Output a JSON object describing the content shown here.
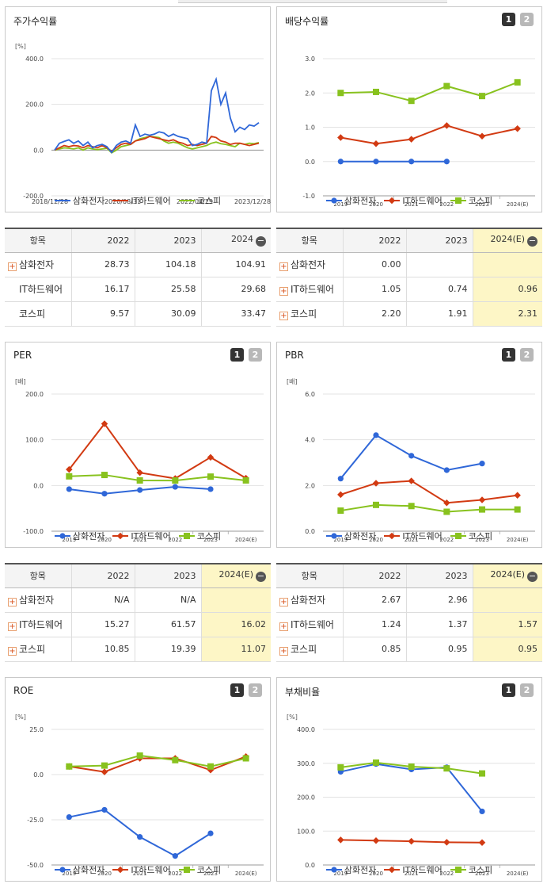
{
  "legend": [
    "삼화전자",
    "IT하드웨어",
    "코스피"
  ],
  "colors": [
    "#2f67d8",
    "#d23a12",
    "#88c21e"
  ],
  "buttons": [
    "1",
    "2"
  ],
  "charts": [
    {
      "id": "stock",
      "title": "주가수익률",
      "unit": "[%]",
      "xlabels": [
        "2018/12/28",
        "2020/08/31",
        "2022/04/29",
        "2023/12/28"
      ],
      "ylim": [
        -200,
        400
      ],
      "yticks": [
        "400.0",
        "200.0",
        "0.0",
        "-200.0"
      ],
      "series": [
        {
          "name": "삼화전자",
          "values": [
            0,
            30,
            38,
            45,
            30,
            40,
            20,
            35,
            10,
            20,
            25,
            15,
            -10,
            20,
            35,
            40,
            30,
            110,
            60,
            70,
            65,
            70,
            80,
            75,
            60,
            70,
            60,
            55,
            50,
            20,
            25,
            35,
            30,
            260,
            310,
            200,
            250,
            140,
            80,
            100,
            90,
            110,
            105,
            120
          ]
        },
        {
          "name": "IT하드웨어",
          "values": [
            0,
            10,
            20,
            15,
            20,
            18,
            10,
            20,
            15,
            10,
            20,
            10,
            -5,
            10,
            25,
            30,
            25,
            40,
            45,
            50,
            60,
            55,
            50,
            45,
            40,
            45,
            35,
            30,
            20,
            25,
            20,
            25,
            30,
            60,
            55,
            40,
            35,
            25,
            30,
            30,
            25,
            20,
            25,
            30
          ]
        },
        {
          "name": "코스피",
          "values": [
            0,
            5,
            10,
            8,
            5,
            10,
            0,
            10,
            5,
            2,
            5,
            8,
            -12,
            0,
            15,
            20,
            25,
            40,
            50,
            55,
            60,
            58,
            55,
            40,
            30,
            35,
            30,
            20,
            10,
            5,
            10,
            15,
            20,
            30,
            35,
            28,
            25,
            20,
            15,
            30,
            25,
            30,
            28,
            33
          ]
        }
      ]
    },
    {
      "id": "div",
      "title": "배당수익률",
      "xlabels": [
        "2019",
        "2020",
        "2021",
        "2022",
        "2023",
        "2024(E)"
      ],
      "ylim": [
        -1,
        3
      ],
      "yticks": [
        "3.0",
        "2.0",
        "1.0",
        "0.0",
        "-1.0"
      ],
      "series": [
        {
          "name": "삼화전자",
          "values": [
            0,
            0,
            0,
            0,
            null,
            null
          ]
        },
        {
          "name": "IT하드웨어",
          "values": [
            0.7,
            0.52,
            0.65,
            1.05,
            0.74,
            0.96
          ]
        },
        {
          "name": "코스피",
          "values": [
            2.0,
            2.03,
            1.77,
            2.2,
            1.91,
            2.31
          ]
        }
      ]
    },
    {
      "id": "per",
      "title": "PER",
      "unit": "[배]",
      "xlabels": [
        "2019",
        "2020",
        "2021",
        "2022",
        "2023",
        "2024(E)"
      ],
      "ylim": [
        -100,
        200
      ],
      "yticks": [
        "200.0",
        "100.0",
        "0.0",
        "-100.0"
      ],
      "series": [
        {
          "name": "삼화전자",
          "values": [
            -8,
            -18,
            -10,
            -3,
            -8,
            null
          ]
        },
        {
          "name": "IT하드웨어",
          "values": [
            35,
            135,
            28,
            15.27,
            61.57,
            16.02
          ]
        },
        {
          "name": "코스피",
          "values": [
            20,
            23,
            11,
            10.85,
            19.39,
            11.07
          ]
        }
      ]
    },
    {
      "id": "pbr",
      "title": "PBR",
      "unit": "[배]",
      "xlabels": [
        "2019",
        "2020",
        "2021",
        "2022",
        "2023",
        "2024(E)"
      ],
      "ylim": [
        0,
        6
      ],
      "yticks": [
        "6.0",
        "4.0",
        "2.0",
        "0.0"
      ],
      "series": [
        {
          "name": "삼화전자",
          "values": [
            2.3,
            4.2,
            3.3,
            2.67,
            2.96,
            null
          ]
        },
        {
          "name": "IT하드웨어",
          "values": [
            1.6,
            2.1,
            2.2,
            1.24,
            1.37,
            1.57
          ]
        },
        {
          "name": "코스피",
          "values": [
            0.9,
            1.15,
            1.1,
            0.85,
            0.95,
            0.95
          ]
        }
      ]
    },
    {
      "id": "roe",
      "title": "ROE",
      "unit": "[%]",
      "xlabels": [
        "2019",
        "2020",
        "2021",
        "2022",
        "2023",
        "2024(E)"
      ],
      "ylim": [
        -50,
        25
      ],
      "yticks": [
        "25.0",
        "0.0",
        "-25.0",
        "-50.0"
      ],
      "series": [
        {
          "name": "삼화전자",
          "values": [
            -23.5,
            -19.5,
            -34.5,
            -45,
            -32.5,
            null
          ]
        },
        {
          "name": "IT하드웨어",
          "values": [
            4.5,
            1.5,
            9,
            9,
            2.5,
            10
          ]
        },
        {
          "name": "코스피",
          "values": [
            4.5,
            5,
            10.5,
            8,
            4.5,
            9
          ]
        }
      ]
    },
    {
      "id": "debt",
      "title": "부채비율",
      "unit": "[%]",
      "xlabels": [
        "2019",
        "2020",
        "2021",
        "2022",
        "2023",
        "2024(E)"
      ],
      "ylim": [
        0,
        400
      ],
      "yticks": [
        "400.0",
        "300.0",
        "200.0",
        "100.0",
        "0.0"
      ],
      "series": [
        {
          "name": "삼화전자",
          "values": [
            275,
            298,
            282,
            288,
            158,
            null
          ]
        },
        {
          "name": "IT하드웨어",
          "values": [
            74,
            72,
            70,
            67,
            66,
            null
          ]
        },
        {
          "name": "코스피",
          "values": [
            288,
            302,
            290,
            285,
            270,
            null
          ]
        }
      ]
    }
  ],
  "tables": {
    "stock": {
      "head": [
        "항목",
        "2022",
        "2023",
        "2024"
      ],
      "rows": [
        [
          "삼화전자",
          "28.73",
          "104.18",
          "104.91"
        ],
        [
          "IT하드웨어",
          "16.17",
          "25.58",
          "29.68"
        ],
        [
          "코스피",
          "9.57",
          "30.09",
          "33.47"
        ]
      ]
    },
    "div": {
      "head": [
        "항목",
        "2022",
        "2023",
        "2024(E)"
      ],
      "rows": [
        [
          "삼화전자",
          "0.00",
          "",
          ""
        ],
        [
          "IT하드웨어",
          "1.05",
          "0.74",
          "0.96"
        ],
        [
          "코스피",
          "2.20",
          "1.91",
          "2.31"
        ]
      ]
    },
    "per": {
      "head": [
        "항목",
        "2022",
        "2023",
        "2024(E)"
      ],
      "rows": [
        [
          "삼화전자",
          "N/A",
          "N/A",
          ""
        ],
        [
          "IT하드웨어",
          "15.27",
          "61.57",
          "16.02"
        ],
        [
          "코스피",
          "10.85",
          "19.39",
          "11.07"
        ]
      ]
    },
    "pbr": {
      "head": [
        "항목",
        "2022",
        "2023",
        "2024(E)"
      ],
      "rows": [
        [
          "삼화전자",
          "2.67",
          "2.96",
          ""
        ],
        [
          "IT하드웨어",
          "1.24",
          "1.37",
          "1.57"
        ],
        [
          "코스피",
          "0.85",
          "0.95",
          "0.95"
        ]
      ]
    }
  }
}
